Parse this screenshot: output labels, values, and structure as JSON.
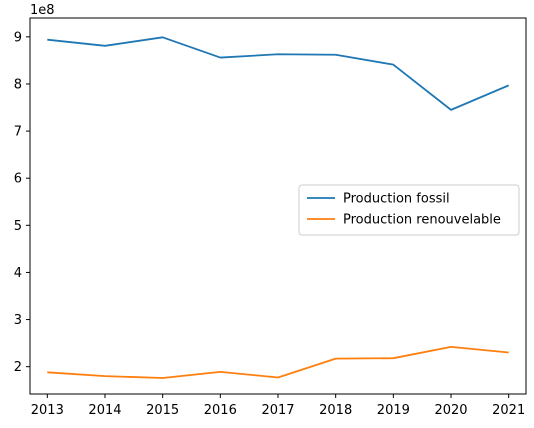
{
  "chart_data": {
    "type": "line",
    "title": "",
    "xlabel": "",
    "ylabel": "",
    "y_offset_label": "1e8",
    "x": [
      2013,
      2014,
      2015,
      2016,
      2017,
      2018,
      2019,
      2020,
      2021
    ],
    "x_tick_labels": [
      "2013",
      "2014",
      "2015",
      "2016",
      "2017",
      "2018",
      "2019",
      "2020",
      "2021"
    ],
    "y_ticks": [
      2,
      3,
      4,
      5,
      6,
      7,
      8,
      9
    ],
    "y_tick_labels": [
      "2",
      "3",
      "4",
      "5",
      "6",
      "7",
      "8",
      "9"
    ],
    "ylim": [
      1.42,
      9.4
    ],
    "y_scale_note": "values in units of 1e8",
    "legend_position": "center-right",
    "grid": false,
    "series": [
      {
        "name": "Production fossil",
        "color": "#1f77b4",
        "values": [
          8.94,
          8.81,
          8.99,
          8.56,
          8.63,
          8.62,
          8.41,
          7.45,
          7.97
        ]
      },
      {
        "name": "Production renouvelable",
        "color": "#ff7f0e",
        "values": [
          1.88,
          1.8,
          1.76,
          1.89,
          1.77,
          2.17,
          2.18,
          2.42,
          2.3
        ]
      }
    ]
  }
}
